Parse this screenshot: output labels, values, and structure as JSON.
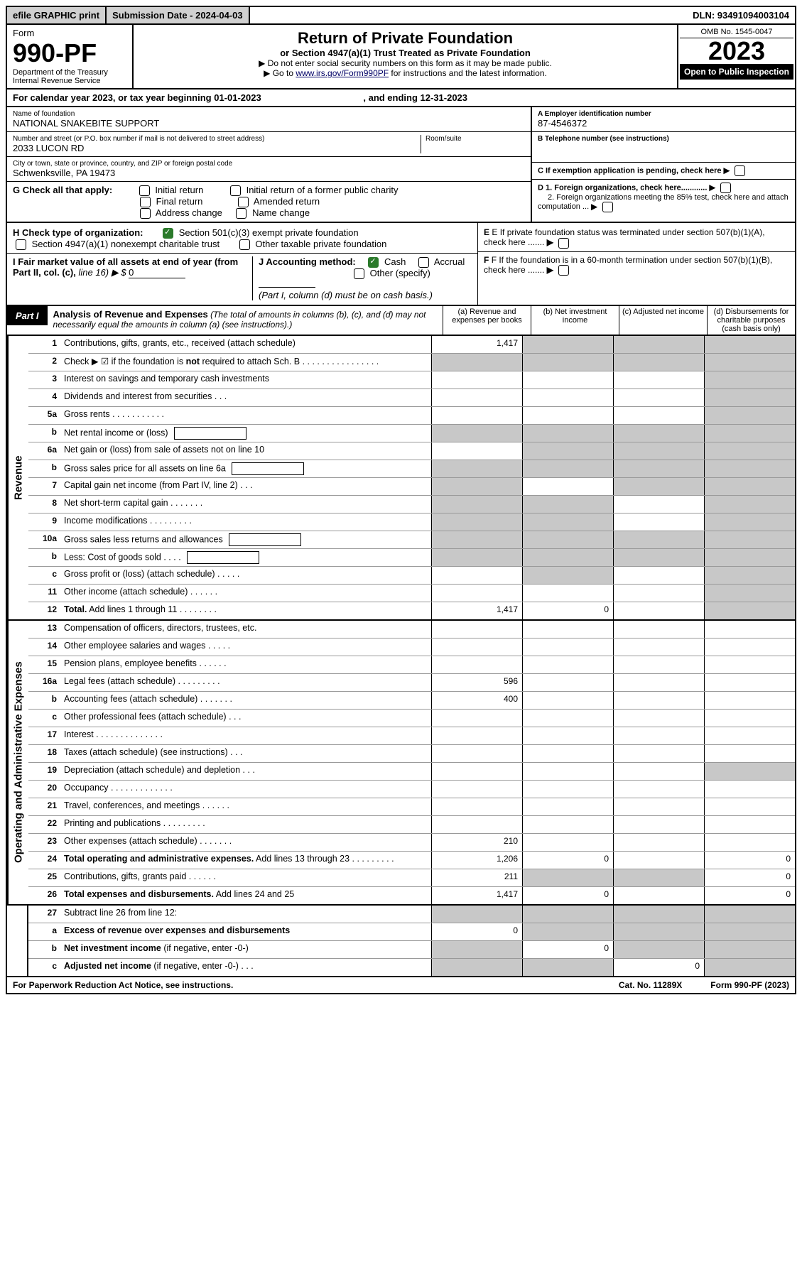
{
  "top": {
    "efile": "efile GRAPHIC print",
    "sub_date_lbl": "Submission Date - 2024-04-03",
    "dln": "DLN: 93491094003104"
  },
  "header": {
    "form_word": "Form",
    "form_no": "990-PF",
    "dept": "Department of the Treasury",
    "irs": "Internal Revenue Service",
    "title": "Return of Private Foundation",
    "subtitle": "or Section 4947(a)(1) Trust Treated as Private Foundation",
    "note1": "▶ Do not enter social security numbers on this form as it may be made public.",
    "note2_pre": "▶ Go to ",
    "note2_link": "www.irs.gov/Form990PF",
    "note2_post": " for instructions and the latest information.",
    "omb": "OMB No. 1545-0047",
    "year": "2023",
    "open": "Open to Public Inspection"
  },
  "cal": {
    "text": "For calendar year 2023, or tax year beginning 01-01-2023",
    "end_lbl": ", and ending 12-31-2023"
  },
  "name_block": {
    "lbl": "Name of foundation",
    "val": "NATIONAL SNAKEBITE SUPPORT",
    "addr_lbl": "Number and street (or P.O. box number if mail is not delivered to street address)",
    "addr": "2033 LUCON RD",
    "room_lbl": "Room/suite",
    "city_lbl": "City or town, state or province, country, and ZIP or foreign postal code",
    "city": "Schwenksville, PA  19473"
  },
  "right_block": {
    "a_lbl": "A Employer identification number",
    "a_val": "87-4546372",
    "b_lbl": "B Telephone number (see instructions)",
    "c_lbl": "C If exemption application is pending, check here",
    "d1": "D 1. Foreign organizations, check here............",
    "d2": "2. Foreign organizations meeting the 85% test, check here and attach computation ...",
    "e": "E  If private foundation status was terminated under section 507(b)(1)(A), check here .......",
    "f": "F  If the foundation is in a 60-month termination under section 507(b)(1)(B), check here .......",
    "arrow": "▶"
  },
  "g": {
    "lbl": "G Check all that apply:",
    "o1": "Initial return",
    "o2": "Initial return of a former public charity",
    "o3": "Final return",
    "o4": "Amended return",
    "o5": "Address change",
    "o6": "Name change"
  },
  "h": {
    "lbl": "H Check type of organization:",
    "o1": "Section 501(c)(3) exempt private foundation",
    "o2": "Section 4947(a)(1) nonexempt charitable trust",
    "o3": "Other taxable private foundation"
  },
  "i": {
    "lbl": "I Fair market value of all assets at end of year (from Part II, col. (c), ",
    "line": "line 16) ▶ $ ",
    "val": "0"
  },
  "j": {
    "lbl": "J Accounting method:",
    "o1": "Cash",
    "o2": "Accrual",
    "o3": "Other (specify)",
    "note": "(Part I, column (d) must be on cash basis.)"
  },
  "part1": {
    "badge": "Part I",
    "title": "Analysis of Revenue and Expenses",
    "note": "(The total of amounts in columns (b), (c), and (d) may not necessarily equal the amounts in column (a) (see instructions).)",
    "ca": "(a)   Revenue and expenses per books",
    "cb": "(b)   Net investment income",
    "cc": "(c)   Adjusted net income",
    "cd": "(d)  Disbursements for charitable purposes (cash basis only)"
  },
  "vtabs": {
    "rev": "Revenue",
    "exp": "Operating and Administrative Expenses"
  },
  "rows": [
    {
      "n": "1",
      "d": "Contributions, gifts, grants, etc., received (attach schedule)",
      "a": "1,417",
      "shade_b": true,
      "shade_c": true,
      "shade_d": true
    },
    {
      "n": "2",
      "d": "Check ▶ ☑ if the foundation is <b>not</b> required to attach Sch. B   .  .  .  .  .  .  .  .  .  .  .  .  .  .  .  .",
      "shade_a": true,
      "shade_b": true,
      "shade_c": true,
      "shade_d": true
    },
    {
      "n": "3",
      "d": "Interest on savings and temporary cash investments",
      "shade_d": true
    },
    {
      "n": "4",
      "d": "Dividends and interest from securities   .   .   .",
      "shade_d": true
    },
    {
      "n": "5a",
      "d": "Gross rents    .   .   .   .   .   .   .   .   .   .   .",
      "shade_d": true
    },
    {
      "n": "b",
      "d": "Net rental income or (loss)",
      "shade_a": true,
      "shade_b": true,
      "shade_c": true,
      "shade_d": true,
      "inline_box": true
    },
    {
      "n": "6a",
      "d": "Net gain or (loss) from sale of assets not on line 10",
      "shade_b": true,
      "shade_c": true,
      "shade_d": true
    },
    {
      "n": "b",
      "d": "Gross sales price for all assets on line 6a",
      "shade_a": true,
      "shade_b": true,
      "shade_c": true,
      "shade_d": true,
      "inline_box": true
    },
    {
      "n": "7",
      "d": "Capital gain net income (from Part IV, line 2)   .   .   .",
      "shade_a": true,
      "shade_c": true,
      "shade_d": true
    },
    {
      "n": "8",
      "d": "Net short-term capital gain  .   .   .   .   .   .   .",
      "shade_a": true,
      "shade_b": true,
      "shade_d": true
    },
    {
      "n": "9",
      "d": "Income modifications  .   .   .   .   .   .   .   .   .",
      "shade_a": true,
      "shade_b": true,
      "shade_d": true
    },
    {
      "n": "10a",
      "d": "Gross sales less returns and allowances",
      "shade_a": true,
      "shade_b": true,
      "shade_c": true,
      "shade_d": true,
      "inline_box": true
    },
    {
      "n": "b",
      "d": "Less: Cost of goods sold    .   .   .   .",
      "shade_a": true,
      "shade_b": true,
      "shade_c": true,
      "shade_d": true,
      "inline_box": true
    },
    {
      "n": "c",
      "d": "Gross profit or (loss) (attach schedule)    .   .   .   .   .",
      "shade_b": true,
      "shade_d": true
    },
    {
      "n": "11",
      "d": "Other income (attach schedule)    .   .   .   .   .   .",
      "shade_d": true
    },
    {
      "n": "12",
      "d": "<b>Total.</b> Add lines 1 through 11   .   .   .   .   .   .   .   .",
      "a": "1,417",
      "b": "0",
      "shade_d": true
    },
    {
      "n": "13",
      "d": "Compensation of officers, directors, trustees, etc."
    },
    {
      "n": "14",
      "d": "Other employee salaries and wages   .   .   .   .   ."
    },
    {
      "n": "15",
      "d": "Pension plans, employee benefits  .   .   .   .   .   ."
    },
    {
      "n": "16a",
      "d": "Legal fees (attach schedule) .   .   .   .   .   .   .   .   .",
      "a": "596"
    },
    {
      "n": "b",
      "d": "Accounting fees (attach schedule) .   .   .   .   .   .   .",
      "a": "400"
    },
    {
      "n": "c",
      "d": "Other professional fees (attach schedule)    .   .   ."
    },
    {
      "n": "17",
      "d": "Interest  .   .   .   .   .   .   .   .   .   .   .   .   .   ."
    },
    {
      "n": "18",
      "d": "Taxes (attach schedule) (see instructions)    .   .   ."
    },
    {
      "n": "19",
      "d": "Depreciation (attach schedule) and depletion   .   .   .",
      "shade_d": true
    },
    {
      "n": "20",
      "d": "Occupancy .   .   .   .   .   .   .   .   .   .   .   .   ."
    },
    {
      "n": "21",
      "d": "Travel, conferences, and meetings .   .   .   .   .   ."
    },
    {
      "n": "22",
      "d": "Printing and publications .   .   .   .   .   .   .   .   ."
    },
    {
      "n": "23",
      "d": "Other expenses (attach schedule) .   .   .   .   .   .   .",
      "a": "210"
    },
    {
      "n": "24",
      "d": "<b>Total operating and administrative expenses.</b> Add lines 13 through 23   .   .   .   .   .   .   .   .   .",
      "a": "1,206",
      "b": "0",
      "d_": "0"
    },
    {
      "n": "25",
      "d": "Contributions, gifts, grants paid    .   .   .   .   .   .",
      "a": "211",
      "shade_b": true,
      "shade_c": true,
      "d_": "0"
    },
    {
      "n": "26",
      "d": "<b>Total expenses and disbursements.</b> Add lines 24 and 25",
      "a": "1,417",
      "b": "0",
      "d_": "0"
    },
    {
      "n": "27",
      "d": "Subtract line 26 from line 12:",
      "shade_a": true,
      "shade_b": true,
      "shade_c": true,
      "shade_d": true
    },
    {
      "n": "a",
      "d": "<b>Excess of revenue over expenses and disbursements</b>",
      "a": "0",
      "shade_b": true,
      "shade_c": true,
      "shade_d": true
    },
    {
      "n": "b",
      "d": "<b>Net investment income</b> (if negative, enter -0-)",
      "shade_a": true,
      "b": "0",
      "shade_c": true,
      "shade_d": true
    },
    {
      "n": "c",
      "d": "<b>Adjusted net income</b> (if negative, enter -0-)   .   .   .",
      "shade_a": true,
      "shade_b": true,
      "c": "0",
      "shade_d": true
    }
  ],
  "footer": {
    "left": "For Paperwork Reduction Act Notice, see instructions.",
    "mid": "Cat. No. 11289X",
    "right": "Form 990-PF (2023)"
  },
  "colors": {
    "shade": "#c8c8c8",
    "black": "#000000",
    "checked": "#2b7a2b"
  }
}
